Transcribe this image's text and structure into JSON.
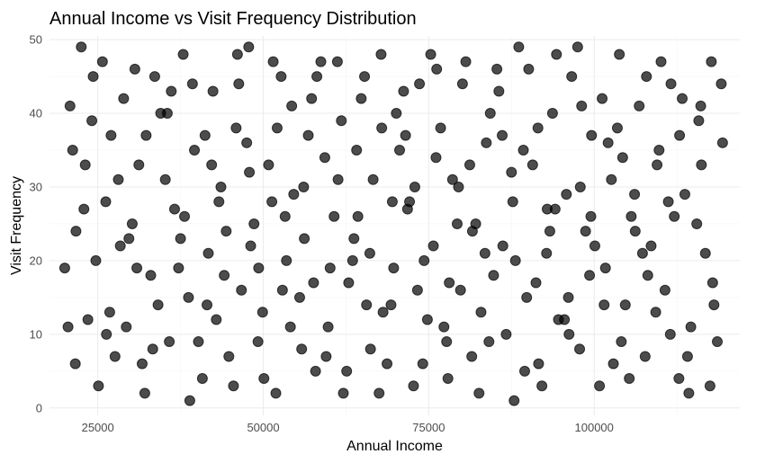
{
  "chart_data": {
    "type": "scatter",
    "title": "Annual Income vs Visit Frequency Distribution",
    "xlabel": "Annual Income",
    "ylabel": "Visit Frequency",
    "xlim": [
      17700,
      122000
    ],
    "ylim": [
      -1,
      50.5
    ],
    "x_ticks": [
      25000,
      50000,
      75000,
      100000
    ],
    "x_tick_labels": [
      "25000",
      "50000",
      "75000",
      "100000"
    ],
    "y_ticks": [
      0,
      10,
      20,
      30,
      40,
      50
    ],
    "y_tick_labels": [
      "0",
      "10",
      "20",
      "30",
      "40",
      "50"
    ],
    "grid": true,
    "legend": "none",
    "point_color": "#000000",
    "point_opacity": 0.7,
    "background": "#ffffff",
    "series": [
      {
        "values_xy": [
          [
            20000,
            19
          ],
          [
            20800,
            41
          ],
          [
            21600,
            6
          ],
          [
            22500,
            49
          ],
          [
            23500,
            12
          ],
          [
            24300,
            45
          ],
          [
            25100,
            3
          ],
          [
            26200,
            28
          ],
          [
            27000,
            37
          ],
          [
            28400,
            22
          ],
          [
            29300,
            11
          ],
          [
            30600,
            46
          ],
          [
            31200,
            33
          ],
          [
            32100,
            2
          ],
          [
            33000,
            18
          ],
          [
            34500,
            40
          ],
          [
            35800,
            9
          ],
          [
            36600,
            27
          ],
          [
            37900,
            48
          ],
          [
            38700,
            15
          ],
          [
            39600,
            35
          ],
          [
            40800,
            4
          ],
          [
            41700,
            21
          ],
          [
            42400,
            43
          ],
          [
            43600,
            30
          ],
          [
            44800,
            7
          ],
          [
            45900,
            38
          ],
          [
            46700,
            16
          ],
          [
            47800,
            49
          ],
          [
            48600,
            25
          ],
          [
            49900,
            13
          ],
          [
            50800,
            33
          ],
          [
            51900,
            2
          ],
          [
            52700,
            45
          ],
          [
            53500,
            20
          ],
          [
            54600,
            29
          ],
          [
            55800,
            8
          ],
          [
            56800,
            37
          ],
          [
            57600,
            17
          ],
          [
            58700,
            47
          ],
          [
            59800,
            11
          ],
          [
            60700,
            26
          ],
          [
            61800,
            39
          ],
          [
            62600,
            5
          ],
          [
            63700,
            23
          ],
          [
            64800,
            42
          ],
          [
            65600,
            14
          ],
          [
            66600,
            31
          ],
          [
            67800,
            48
          ],
          [
            68700,
            6
          ],
          [
            69700,
            19
          ],
          [
            70600,
            35
          ],
          [
            71800,
            27
          ],
          [
            72700,
            3
          ],
          [
            73600,
            44
          ],
          [
            74800,
            12
          ],
          [
            75700,
            22
          ],
          [
            76800,
            38
          ],
          [
            77700,
            9
          ],
          [
            78600,
            31
          ],
          [
            79800,
            16
          ],
          [
            80600,
            47
          ],
          [
            81600,
            24
          ],
          [
            82600,
            2
          ],
          [
            83700,
            36
          ],
          [
            84800,
            18
          ],
          [
            85600,
            43
          ],
          [
            86700,
            10
          ],
          [
            87700,
            28
          ],
          [
            88600,
            49
          ],
          [
            89800,
            15
          ],
          [
            90700,
            33
          ],
          [
            91600,
            6
          ],
          [
            92800,
            21
          ],
          [
            93700,
            40
          ],
          [
            94600,
            12
          ],
          [
            95800,
            29
          ],
          [
            96600,
            45
          ],
          [
            97800,
            8
          ],
          [
            98700,
            24
          ],
          [
            99600,
            37
          ],
          [
            100800,
            3
          ],
          [
            101700,
            19
          ],
          [
            102600,
            31
          ],
          [
            103800,
            48
          ],
          [
            104700,
            14
          ],
          [
            105600,
            26
          ],
          [
            106800,
            41
          ],
          [
            107700,
            7
          ],
          [
            108600,
            22
          ],
          [
            109800,
            35
          ],
          [
            110700,
            16
          ],
          [
            111600,
            44
          ],
          [
            112800,
            4
          ],
          [
            113700,
            29
          ],
          [
            114600,
            11
          ],
          [
            115800,
            39
          ],
          [
            116800,
            21
          ],
          [
            117700,
            47
          ],
          [
            118600,
            9
          ],
          [
            21200,
            35
          ],
          [
            22900,
            27
          ],
          [
            24700,
            20
          ],
          [
            26800,
            13
          ],
          [
            28900,
            42
          ],
          [
            30200,
            25
          ],
          [
            31700,
            6
          ],
          [
            33600,
            45
          ],
          [
            35200,
            31
          ],
          [
            37200,
            19
          ],
          [
            38900,
            1
          ],
          [
            41200,
            37
          ],
          [
            42900,
            12
          ],
          [
            44400,
            24
          ],
          [
            46300,
            44
          ],
          [
            47900,
            32
          ],
          [
            49200,
            9
          ],
          [
            51300,
            28
          ],
          [
            52900,
            16
          ],
          [
            54300,
            41
          ],
          [
            56200,
            23
          ],
          [
            57900,
            5
          ],
          [
            59300,
            34
          ],
          [
            61200,
            47
          ],
          [
            62900,
            17
          ],
          [
            64300,
            26
          ],
          [
            66200,
            8
          ],
          [
            67900,
            38
          ],
          [
            69300,
            14
          ],
          [
            71200,
            43
          ],
          [
            72900,
            30
          ],
          [
            74300,
            20
          ],
          [
            76200,
            46
          ],
          [
            77900,
            4
          ],
          [
            79300,
            25
          ],
          [
            81200,
            33
          ],
          [
            82900,
            13
          ],
          [
            84300,
            40
          ],
          [
            86200,
            22
          ],
          [
            87900,
            1
          ],
          [
            89300,
            35
          ],
          [
            91200,
            17
          ],
          [
            92900,
            27
          ],
          [
            94300,
            48
          ],
          [
            96200,
            10
          ],
          [
            97900,
            30
          ],
          [
            99300,
            18
          ],
          [
            101200,
            42
          ],
          [
            102900,
            6
          ],
          [
            104300,
            34
          ],
          [
            106200,
            24
          ],
          [
            107900,
            45
          ],
          [
            109300,
            13
          ],
          [
            111200,
            28
          ],
          [
            112900,
            37
          ],
          [
            114300,
            2
          ],
          [
            116200,
            33
          ],
          [
            117900,
            17
          ],
          [
            119200,
            44
          ],
          [
            20500,
            11
          ],
          [
            23100,
            33
          ],
          [
            25700,
            47
          ],
          [
            27600,
            7
          ],
          [
            29700,
            23
          ],
          [
            32300,
            37
          ],
          [
            34100,
            14
          ],
          [
            36100,
            43
          ],
          [
            38100,
            26
          ],
          [
            40200,
            9
          ],
          [
            42200,
            33
          ],
          [
            44100,
            18
          ],
          [
            46100,
            48
          ],
          [
            48100,
            22
          ],
          [
            50100,
            4
          ],
          [
            52100,
            38
          ],
          [
            54100,
            11
          ],
          [
            56100,
            30
          ],
          [
            58100,
            45
          ],
          [
            60100,
            19
          ],
          [
            62100,
            2
          ],
          [
            64100,
            35
          ],
          [
            66100,
            21
          ],
          [
            68100,
            13
          ],
          [
            70100,
            40
          ],
          [
            72100,
            28
          ],
          [
            74100,
            6
          ],
          [
            76100,
            34
          ],
          [
            78100,
            17
          ],
          [
            80100,
            44
          ],
          [
            82100,
            25
          ],
          [
            84100,
            9
          ],
          [
            86100,
            37
          ],
          [
            88100,
            20
          ],
          [
            90100,
            46
          ],
          [
            92100,
            3
          ],
          [
            94100,
            27
          ],
          [
            96100,
            15
          ],
          [
            98100,
            41
          ],
          [
            100100,
            22
          ],
          [
            102100,
            36
          ],
          [
            104100,
            9
          ],
          [
            106100,
            29
          ],
          [
            108100,
            18
          ],
          [
            110100,
            47
          ],
          [
            112100,
            26
          ],
          [
            114100,
            7
          ],
          [
            116100,
            41
          ],
          [
            118100,
            14
          ],
          [
            21700,
            24
          ],
          [
            24100,
            39
          ],
          [
            26300,
            10
          ],
          [
            28100,
            31
          ],
          [
            30900,
            19
          ],
          [
            33300,
            8
          ],
          [
            35500,
            40
          ],
          [
            37500,
            23
          ],
          [
            39300,
            44
          ],
          [
            41500,
            14
          ],
          [
            43300,
            28
          ],
          [
            45500,
            3
          ],
          [
            47500,
            36
          ],
          [
            49300,
            19
          ],
          [
            51500,
            47
          ],
          [
            53300,
            26
          ],
          [
            55500,
            15
          ],
          [
            57300,
            42
          ],
          [
            59500,
            7
          ],
          [
            61300,
            31
          ],
          [
            63500,
            20
          ],
          [
            65300,
            45
          ],
          [
            67500,
            2
          ],
          [
            69500,
            28
          ],
          [
            71500,
            37
          ],
          [
            73300,
            16
          ],
          [
            75300,
            48
          ],
          [
            77300,
            11
          ],
          [
            79500,
            30
          ],
          [
            81500,
            7
          ],
          [
            83500,
            21
          ],
          [
            85300,
            46
          ],
          [
            87500,
            32
          ],
          [
            89500,
            5
          ],
          [
            91500,
            38
          ],
          [
            93300,
            24
          ],
          [
            95500,
            12
          ],
          [
            97500,
            49
          ],
          [
            99500,
            26
          ],
          [
            101500,
            14
          ],
          [
            103500,
            38
          ],
          [
            105300,
            4
          ],
          [
            107300,
            21
          ],
          [
            109500,
            33
          ],
          [
            111500,
            10
          ],
          [
            113300,
            42
          ],
          [
            115500,
            25
          ],
          [
            117500,
            3
          ],
          [
            119400,
            36
          ]
        ]
      }
    ]
  }
}
